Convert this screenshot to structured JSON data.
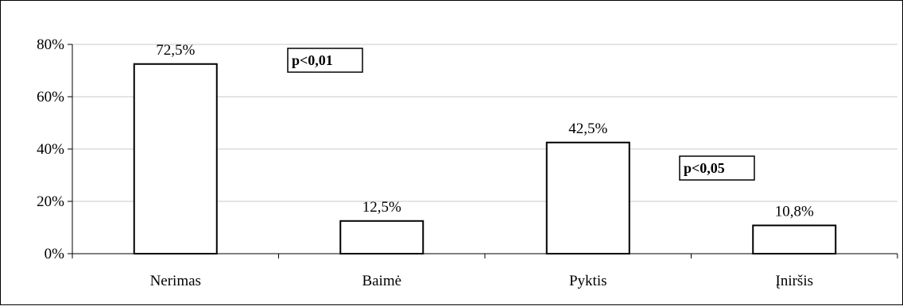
{
  "chart_data": {
    "type": "bar",
    "categories": [
      "Nerimas",
      "Baimė",
      "Pyktis",
      "Įniršis"
    ],
    "values": [
      72.5,
      12.5,
      42.5,
      10.8
    ],
    "data_labels": [
      "72,5%",
      "12,5%",
      "42,5%",
      "10,8%"
    ],
    "title": "",
    "xlabel": "",
    "ylabel": "",
    "ylim": [
      0,
      80
    ],
    "y_ticks": [
      0,
      20,
      40,
      60,
      80
    ],
    "y_tick_labels": [
      "0%",
      "20%",
      "40%",
      "60%",
      "80%"
    ],
    "grid": true,
    "bar_fill": "#ffffff",
    "bar_stroke": "#000000",
    "grid_color": "#c8c8c8",
    "annotations": [
      {
        "text": "p<0,01",
        "near": "between Nerimas and Baimė"
      },
      {
        "text": "p<0,05",
        "near": "between Pyktis and Įniršis"
      }
    ]
  }
}
